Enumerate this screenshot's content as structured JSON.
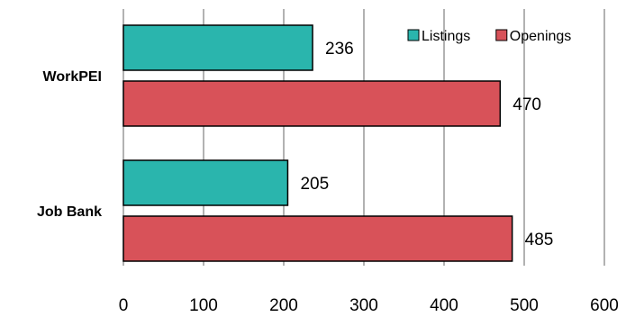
{
  "chart_data": {
    "type": "bar",
    "orientation": "horizontal",
    "categories": [
      "WorkPEI",
      "Job Bank"
    ],
    "series": [
      {
        "name": "Listings",
        "values": [
          236,
          205
        ],
        "color": "#2ab5ad"
      },
      {
        "name": "Openings",
        "values": [
          470,
          485
        ],
        "color": "#d85259"
      }
    ],
    "xlim": [
      0,
      600
    ],
    "xticks": [
      "0",
      "100",
      "200",
      "300",
      "400",
      "500",
      "600"
    ],
    "data_labels": [
      "236",
      "470",
      "205",
      "485"
    ],
    "grid": true,
    "legend_position": "top-right",
    "title": "",
    "xlabel": "",
    "ylabel": ""
  }
}
